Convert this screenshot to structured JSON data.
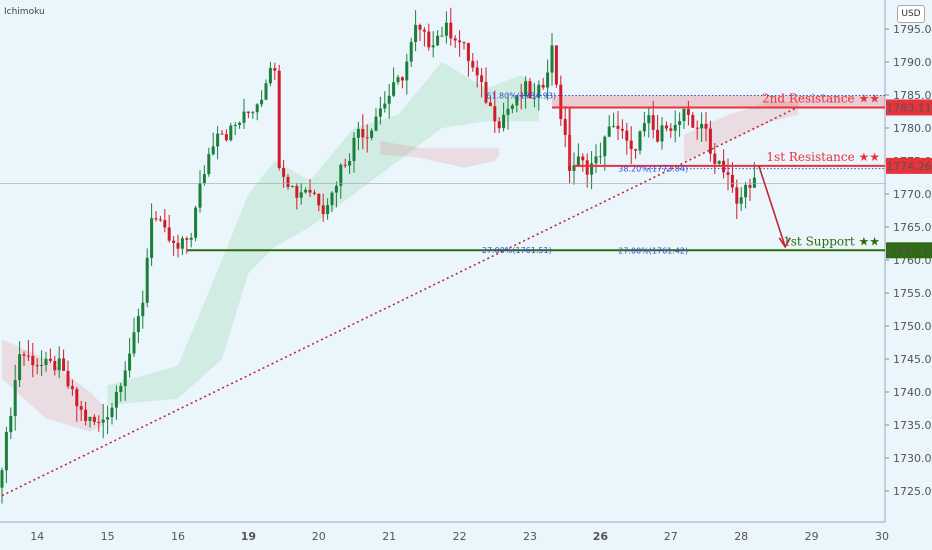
{
  "header": {
    "indicator_label": "Ichimoku",
    "currency_button": "USD"
  },
  "colors": {
    "background": "#eaf6fb",
    "up": "#1b7f3a",
    "down": "#d01c2a",
    "support": "#2e6b10",
    "resistance": "#e8323c",
    "fib": "#3b4bd0",
    "trend": "#c0262e"
  },
  "chart_data": {
    "type": "candlestick",
    "title": "",
    "y_axis": {
      "position": "right",
      "min": 1720,
      "max": 1800,
      "ticks": [
        1725,
        1730,
        1735,
        1740,
        1745,
        1750,
        1755,
        1760,
        1765,
        1770,
        1775,
        1780,
        1785,
        1790,
        1795
      ],
      "tick_labels": [
        "1725.00",
        "1730.00",
        "1735.00",
        "1740.00",
        "1745.00",
        "1750.00",
        "1755.00",
        "1760.00",
        "1765.00",
        "1770.00",
        "1775.00",
        "1780.00",
        "1785.00",
        "1790.00",
        "1795.00"
      ]
    },
    "x_axis": {
      "labels": [
        {
          "label": "14",
          "bar": 8,
          "bold": false
        },
        {
          "label": "15",
          "bar": 24,
          "bold": false
        },
        {
          "label": "16",
          "bar": 40,
          "bold": false
        },
        {
          "label": "19",
          "bar": 56,
          "bold": true
        },
        {
          "label": "20",
          "bar": 72,
          "bold": false
        },
        {
          "label": "21",
          "bar": 88,
          "bold": false
        },
        {
          "label": "22",
          "bar": 104,
          "bold": false
        },
        {
          "label": "23",
          "bar": 120,
          "bold": false
        },
        {
          "label": "26",
          "bar": 136,
          "bold": true
        },
        {
          "label": "27",
          "bar": 152,
          "bold": false
        },
        {
          "label": "28",
          "bar": 168,
          "bold": false
        },
        {
          "label": "29",
          "bar": 184,
          "bold": false
        },
        {
          "label": "30",
          "bar": 200,
          "bold": false
        }
      ]
    },
    "price_anchors": [
      [
        0,
        1725.5
      ],
      [
        2,
        1733
      ],
      [
        5,
        1746
      ],
      [
        10,
        1744
      ],
      [
        14,
        1744
      ],
      [
        18,
        1738
      ],
      [
        20,
        1736
      ],
      [
        23,
        1735
      ],
      [
        26,
        1738
      ],
      [
        28,
        1742
      ],
      [
        31,
        1748
      ],
      [
        33,
        1754
      ],
      [
        35,
        1767
      ],
      [
        38,
        1764
      ],
      [
        40,
        1762
      ],
      [
        41,
        1761.5
      ],
      [
        44,
        1764
      ],
      [
        46,
        1771
      ],
      [
        48,
        1776
      ],
      [
        50,
        1780
      ],
      [
        52,
        1779
      ],
      [
        55,
        1781
      ],
      [
        58,
        1783
      ],
      [
        60,
        1785
      ],
      [
        62,
        1790
      ],
      [
        63,
        1788
      ],
      [
        64,
        1775
      ],
      [
        66,
        1772
      ],
      [
        68,
        1770
      ],
      [
        70,
        1771
      ],
      [
        72,
        1770
      ],
      [
        74,
        1768
      ],
      [
        76,
        1770
      ],
      [
        78,
        1774
      ],
      [
        80,
        1776
      ],
      [
        82,
        1780
      ],
      [
        84,
        1779
      ],
      [
        86,
        1782
      ],
      [
        88,
        1784
      ],
      [
        90,
        1786
      ],
      [
        92,
        1788
      ],
      [
        93,
        1790
      ],
      [
        95,
        1795
      ],
      [
        98,
        1793
      ],
      [
        100,
        1794
      ],
      [
        102,
        1795
      ],
      [
        104,
        1794
      ],
      [
        106,
        1792
      ],
      [
        108,
        1789
      ],
      [
        110,
        1786
      ],
      [
        112,
        1783
      ],
      [
        114,
        1781
      ],
      [
        116,
        1783
      ],
      [
        118,
        1784
      ],
      [
        120,
        1786
      ],
      [
        122,
        1784
      ],
      [
        124,
        1787
      ],
      [
        126,
        1792
      ],
      [
        128,
        1782
      ],
      [
        130,
        1774
      ],
      [
        132,
        1775
      ],
      [
        134,
        1774
      ],
      [
        136,
        1775
      ],
      [
        138,
        1778
      ],
      [
        140,
        1781
      ],
      [
        142,
        1779
      ],
      [
        144,
        1776
      ],
      [
        146,
        1779
      ],
      [
        148,
        1781
      ],
      [
        150,
        1778
      ],
      [
        152,
        1781
      ],
      [
        154,
        1780
      ],
      [
        156,
        1782
      ],
      [
        158,
        1780
      ],
      [
        160,
        1781
      ],
      [
        161,
        1779
      ],
      [
        162,
        1776
      ],
      [
        164,
        1775
      ],
      [
        166,
        1773
      ],
      [
        168,
        1768
      ],
      [
        170,
        1771
      ],
      [
        171,
        1772
      ]
    ],
    "last_bar": 171,
    "levels": [
      {
        "name": "2nd Resistance ★★",
        "value": 1783.11,
        "label": "1783.11",
        "color": "#e8323c",
        "start_bar": 125
      },
      {
        "name": "1st Resistance ★★",
        "value": 1774.26,
        "label": "1774.26",
        "color": "#e8323c",
        "start_bar": 130
      },
      {
        "name": "1st Support ★★",
        "value": 1761.47,
        "label": "1761.47",
        "color": "#2e6b10",
        "start_bar": 42
      }
    ],
    "resistance_zone": {
      "from": 1783.11,
      "to": 1784.9,
      "start_bar": 125
    },
    "resistance_step": {
      "upper": 1783.11,
      "lower": 1774.26,
      "bar": 129
    },
    "fib_labels": [
      {
        "text": "61.80%(1784.93)",
        "value": 1784.9,
        "bar": 118
      },
      {
        "text": "38.20%(1773.84)",
        "value": 1773.84,
        "bar": 148
      },
      {
        "text": "27.00%(1761.51)",
        "value": 1761.51,
        "bar": 117
      },
      {
        "text": "27.00%(1761.42)",
        "value": 1761.42,
        "bar": 148
      }
    ],
    "fib_lines": [
      {
        "value": 1784.93,
        "start_bar": 116
      },
      {
        "value": 1773.84,
        "start_bar": 146
      },
      {
        "value": 1761.45,
        "start_bar": 117
      }
    ],
    "trendline": {
      "from": [
        0,
        1724.3
      ],
      "to": [
        181,
        1783.2
      ]
    },
    "arrow": {
      "from": [
        172,
        1774.3
      ],
      "to": [
        178,
        1762.0
      ]
    },
    "current_price_line": 1771.6,
    "cloud": {
      "green": [
        [
          24,
          1738,
          1741
        ],
        [
          40,
          1739,
          1744
        ],
        [
          50,
          1745,
          1760
        ],
        [
          56,
          1758,
          1770
        ],
        [
          62,
          1762,
          1775
        ],
        [
          70,
          1765,
          1772
        ],
        [
          80,
          1770,
          1780
        ],
        [
          90,
          1775,
          1782
        ],
        [
          100,
          1780,
          1790
        ],
        [
          110,
          1781,
          1786
        ],
        [
          118,
          1781,
          1788
        ],
        [
          122,
          1781,
          1786
        ]
      ],
      "red": [
        [
          0,
          1742,
          1748
        ],
        [
          10,
          1736,
          1745
        ],
        [
          20,
          1734,
          1740
        ],
        [
          23,
          1735,
          1738
        ]
      ],
      "red2": [
        [
          86,
          1776,
          1778
        ],
        [
          95,
          1775.5,
          1777
        ],
        [
          105,
          1774,
          1777
        ],
        [
          112,
          1775,
          1777
        ],
        [
          113,
          1776,
          1777
        ]
      ],
      "red3": [
        [
          155,
          1775,
          1779
        ],
        [
          165,
          1778,
          1782
        ],
        [
          175,
          1781,
          1784
        ],
        [
          181,
          1782,
          1784
        ]
      ]
    }
  }
}
